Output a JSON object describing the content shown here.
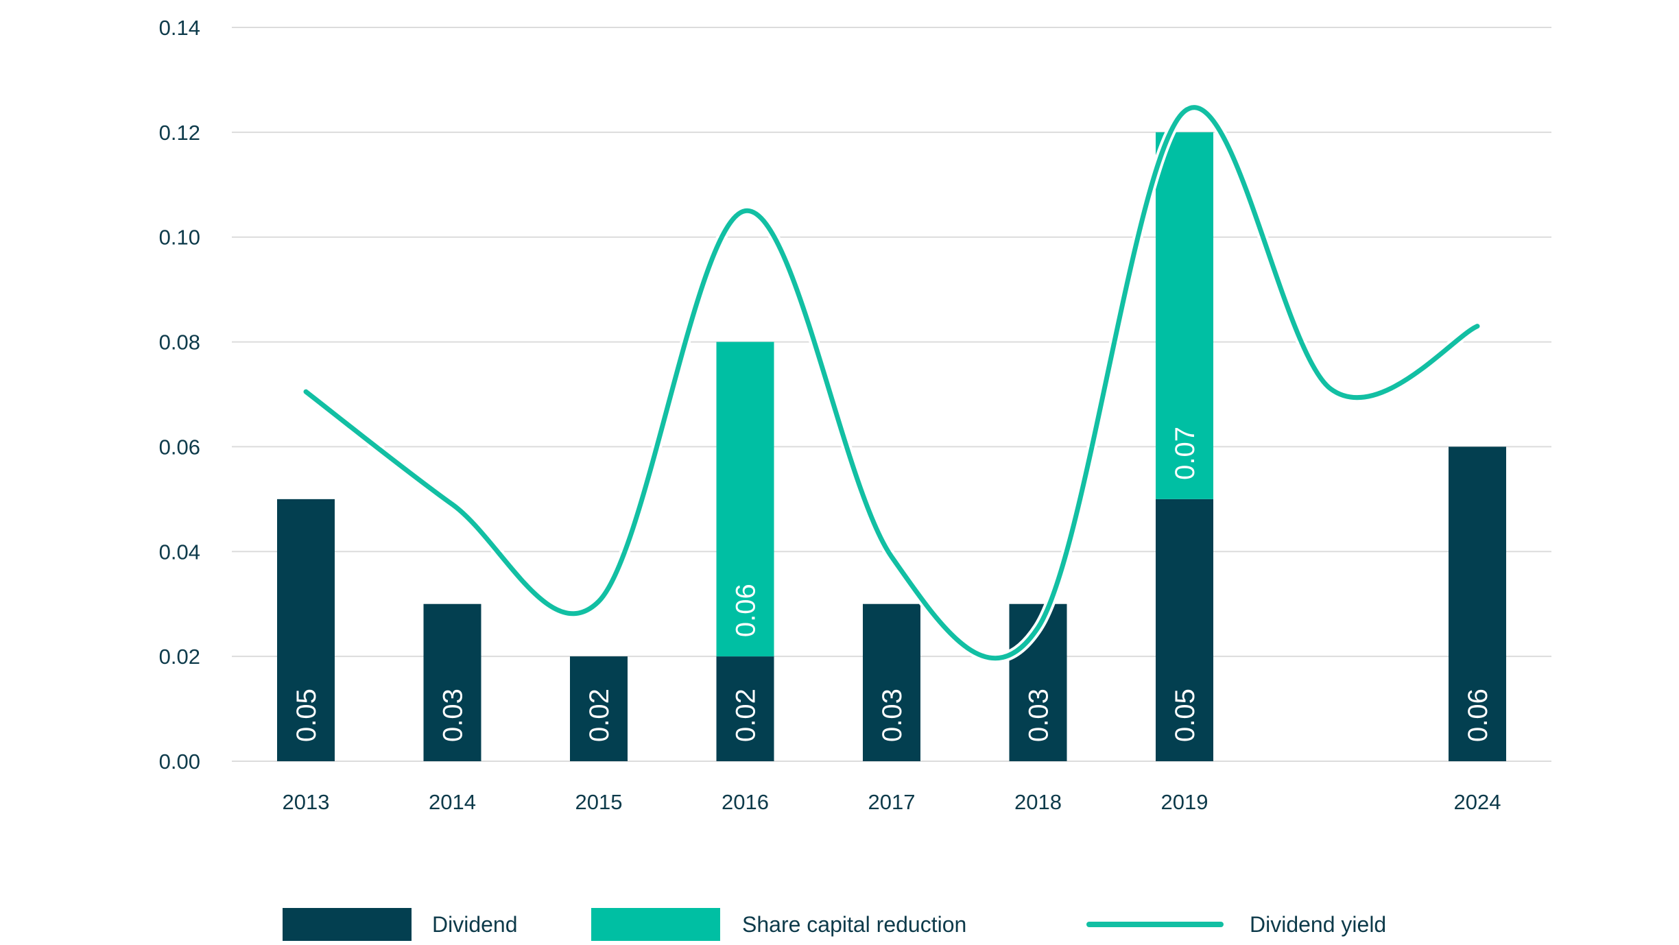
{
  "chart_data": {
    "type": "bar",
    "stacked": true,
    "categories": [
      "2013",
      "2014",
      "2015",
      "2016",
      "2017",
      "2018",
      "2019",
      "",
      "2024"
    ],
    "series": [
      {
        "name": "Dividend",
        "kind": "bar",
        "color": "#033f50",
        "values": [
          0.05,
          0.03,
          0.02,
          0.02,
          0.03,
          0.03,
          0.05,
          null,
          0.06
        ],
        "labels": [
          "0.05",
          "0.03",
          "0.02",
          "0.02",
          "0.03",
          "0.03",
          "0.05",
          "",
          "0.06"
        ]
      },
      {
        "name": "Share capital reduction",
        "kind": "bar",
        "color": "#00bfa3",
        "values": [
          0,
          0,
          0,
          0.06,
          0,
          0,
          0.07,
          null,
          0
        ],
        "labels": [
          "",
          "",
          "",
          "0.06",
          "",
          "",
          "0.07",
          "",
          ""
        ]
      },
      {
        "name": "Dividend yield",
        "kind": "line",
        "color": "#12bfa3",
        "values": [
          0.0705,
          0.049,
          0.0305,
          0.105,
          0.039,
          0.0255,
          0.124,
          0.071,
          0.083
        ]
      }
    ],
    "y_ticks": [
      "0.00",
      "0.02",
      "0.04",
      "0.06",
      "0.08",
      "0.10",
      "0.12",
      "0.14"
    ],
    "ylim": [
      0,
      0.14
    ],
    "grid": true,
    "legend_position": "bottom"
  }
}
